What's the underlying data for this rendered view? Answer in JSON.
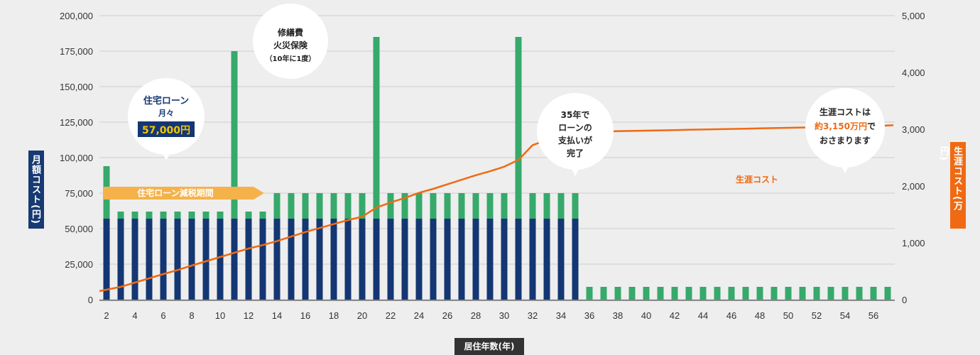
{
  "chart_data": {
    "type": "bar",
    "xlabel": "居住年数(年)",
    "ylabel_left": "月額コスト(円)",
    "ylabel_right": "生涯コスト(万円)",
    "left_axis": {
      "min": 0,
      "max": 200000,
      "ticks": [
        "0",
        "25,000",
        "50,000",
        "75,000",
        "100,000",
        "125,000",
        "150,000",
        "175,000",
        "200,000"
      ]
    },
    "right_axis": {
      "min": 0,
      "max": 5000,
      "ticks": [
        "0",
        "1,000",
        "2,000",
        "3,000",
        "4,000",
        "5,000"
      ]
    },
    "x": [
      2,
      3,
      4,
      5,
      6,
      7,
      8,
      9,
      10,
      11,
      12,
      13,
      14,
      15,
      16,
      17,
      18,
      19,
      20,
      21,
      22,
      23,
      24,
      25,
      26,
      27,
      28,
      29,
      30,
      31,
      32,
      33,
      34,
      35,
      36,
      37,
      38,
      39,
      40,
      41,
      42,
      43,
      44,
      45,
      46,
      47,
      48,
      49,
      50,
      51,
      52,
      53,
      54,
      55,
      56,
      57
    ],
    "x_tick_labels": [
      "2",
      "4",
      "6",
      "8",
      "10",
      "12",
      "14",
      "16",
      "18",
      "20",
      "22",
      "24",
      "26",
      "28",
      "30",
      "32",
      "34",
      "36",
      "38",
      "40",
      "42",
      "44",
      "46",
      "48",
      "50",
      "52",
      "54",
      "56"
    ],
    "series": [
      {
        "values": [
          57000,
          57000,
          57000,
          57000,
          57000,
          57000,
          57000,
          57000,
          57000,
          57000,
          57000,
          57000,
          57000,
          57000,
          57000,
          57000,
          57000,
          57000,
          57000,
          57000,
          57000,
          57000,
          57000,
          57000,
          57000,
          57000,
          57000,
          57000,
          57000,
          57000,
          57000,
          57000,
          57000,
          57000,
          0,
          0,
          0,
          0,
          0,
          0,
          0,
          0,
          0,
          0,
          0,
          0,
          0,
          0,
          0,
          0,
          0,
          0,
          0,
          0,
          0,
          0
        ],
        "color": "#143773"
      },
      {
        "values": [
          37000,
          5000,
          5000,
          5000,
          5000,
          5000,
          5000,
          5000,
          5000,
          118000,
          5000,
          5000,
          18000,
          18000,
          18000,
          18000,
          18000,
          18000,
          18000,
          128000,
          18000,
          18000,
          18000,
          18000,
          18000,
          18000,
          18000,
          18000,
          18000,
          128000,
          18000,
          18000,
          18000,
          18000,
          9000,
          9000,
          9000,
          9000,
          9000,
          9000,
          9000,
          9000,
          9000,
          9000,
          9000,
          9000,
          9000,
          9000,
          9000,
          9000,
          9000,
          9000,
          9000,
          9000,
          9000,
          9000
        ],
        "color": "#36a96b"
      },
      {
        "name": "生涯コスト",
        "axis": "right",
        "type": "line",
        "color": "#ef6a12",
        "values": [
          150,
          225,
          300,
          375,
          450,
          520,
          600,
          675,
          750,
          825,
          900,
          960,
          1030,
          1110,
          1190,
          1260,
          1330,
          1400,
          1460,
          1620,
          1710,
          1790,
          1880,
          1950,
          2030,
          2110,
          2190,
          2260,
          2340,
          2460,
          2720,
          2810,
          2880,
          2950,
          2955,
          2960,
          2965,
          2970,
          2975,
          2980,
          2985,
          2990,
          2995,
          3000,
          3005,
          3010,
          3015,
          3020,
          3025,
          3030,
          3035,
          3040,
          3045,
          3050,
          3055,
          3070
        ]
      }
    ],
    "grid": true
  },
  "annotations": {
    "loan_bubble": {
      "line1": "住宅ローン",
      "line2": "月々",
      "amount": "57,000円"
    },
    "repair_bubble": {
      "line1": "修繕費",
      "line2": "火災保険",
      "line3": "（10年に1度）"
    },
    "payoff_bubble": {
      "line1": "35年で",
      "line2": "ローンの",
      "line3": "支払いが",
      "line4": "完了"
    },
    "lifetime_bubble": {
      "line1": "生涯コストは",
      "line2a": "約3,150万円",
      "line2b": "で",
      "line3": "おさまります"
    },
    "tax_period": "住宅ローン減税期間",
    "cost_line_label": "生涯コスト"
  },
  "colors": {
    "background": "#eeeeee",
    "loan": "#143773",
    "other": "#36a96b",
    "line": "#ef6a12",
    "arrow": "#f5b24a",
    "amount_bg": "#143773",
    "amount_text": "#f5c400"
  }
}
